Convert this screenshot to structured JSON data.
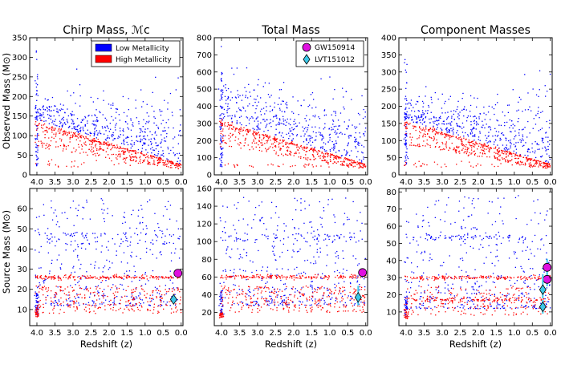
{
  "figure": {
    "ylabel_top": "Observed Mass (M⊙)",
    "ylabel_bottom": "Source Mass (M⊙)",
    "xlabel": "Redshift (z)"
  },
  "colors": {
    "low_metallicity": "#0000ff",
    "high_metallicity": "#ff0000",
    "gw150914": "#e010e0",
    "lvt151012": "#3cc8e8",
    "error_bar": "#3cc8e8"
  },
  "legend_metallicity": [
    "Low Metallicity",
    "High Metallicity"
  ],
  "legend_events": [
    "GW150914",
    "LVT151012"
  ],
  "chart_data": [
    {
      "type": "scatter",
      "panel": "top-left",
      "title": "Chirp Mass, ℳc",
      "xlabel": "",
      "ylabel": "Observed Mass (M⊙)",
      "xlim": [
        4.2,
        -0.05
      ],
      "ylim": [
        0,
        350
      ],
      "xticks": [
        "4.0",
        "3.5",
        "3.0",
        "2.5",
        "2.0",
        "1.5",
        "1.0",
        "0.5",
        "0.0"
      ],
      "yticks": [
        "0",
        "50",
        "100",
        "150",
        "200",
        "250",
        "300",
        "350"
      ],
      "series": [
        {
          "name": "Low Metallicity",
          "model": "observed",
          "fundamental": 28,
          "scale": [
            0.15,
            9
          ],
          "floor": 20
        },
        {
          "name": "High Metallicity",
          "model": "observed",
          "base": 26,
          "lower": 14,
          "floor": 20
        }
      ],
      "legend": "top-right"
    },
    {
      "type": "scatter",
      "panel": "top-middle",
      "title": "Total Mass",
      "xlabel": "",
      "ylabel": "",
      "xlim": [
        4.2,
        -0.05
      ],
      "ylim": [
        0,
        800
      ],
      "xticks": [
        "4.0",
        "3.5",
        "3.0",
        "2.5",
        "2.0",
        "1.5",
        "1.0",
        "0.5",
        "0.0"
      ],
      "yticks": [
        "0",
        "100",
        "200",
        "300",
        "400",
        "500",
        "600",
        "700",
        "800"
      ],
      "series": [
        {
          "name": "Low Metallicity",
          "model": "observed",
          "fundamental": 65,
          "scale": [
            0.35,
            18
          ],
          "floor": 45
        },
        {
          "name": "High Metallicity",
          "model": "observed",
          "base": 60,
          "lower": 33,
          "floor": 45
        }
      ],
      "legend": "top-right"
    },
    {
      "type": "scatter",
      "panel": "top-right",
      "title": "Component Masses",
      "xlabel": "",
      "ylabel": "",
      "xlim": [
        4.2,
        -0.05
      ],
      "ylim": [
        0,
        400
      ],
      "xticks": [
        "4.0",
        "3.5",
        "3.0",
        "2.5",
        "2.0",
        "1.5",
        "1.0",
        "0.5",
        "0.0"
      ],
      "yticks": [
        "0",
        "50",
        "100",
        "150",
        "200",
        "250",
        "300",
        "350",
        "400"
      ],
      "series": [
        {
          "name": "Low Metallicity",
          "model": "observed",
          "fundamental": 32,
          "scale": [
            0.15,
            11
          ],
          "floor": 20
        },
        {
          "name": "High Metallicity",
          "model": "observed",
          "base": 30,
          "lower": 17,
          "floor": 20
        }
      ]
    },
    {
      "type": "scatter",
      "panel": "bottom-left",
      "title": "",
      "xlabel": "Redshift (z)",
      "ylabel": "Source Mass (M⊙)",
      "xlim": [
        4.2,
        -0.05
      ],
      "ylim": [
        2,
        70
      ],
      "xticks": [
        "4.0",
        "3.5",
        "3.0",
        "2.5",
        "2.0",
        "1.5",
        "1.0",
        "0.5",
        "0.0"
      ],
      "yticks": [
        "10",
        "20",
        "30",
        "40",
        "50",
        "60"
      ],
      "series": [
        {
          "name": "Low Metallicity",
          "model": "source",
          "band": [
            12,
            65
          ],
          "cluster": [
            42,
            48
          ]
        },
        {
          "name": "High Metallicity",
          "model": "source",
          "line": 26,
          "band": [
            8,
            22
          ]
        }
      ],
      "events": [
        {
          "name": "GW150914",
          "z": 0.09,
          "value": 28,
          "err": [
            26.5,
            29.5
          ],
          "marker": "circle"
        },
        {
          "name": "LVT151012",
          "z": 0.21,
          "value": 15,
          "err": [
            13.5,
            17.5
          ],
          "marker": "diamond"
        }
      ]
    },
    {
      "type": "scatter",
      "panel": "bottom-middle",
      "title": "",
      "xlabel": "Redshift (z)",
      "ylabel": "",
      "xlim": [
        4.2,
        -0.05
      ],
      "ylim": [
        5,
        160
      ],
      "xticks": [
        "4.0",
        "3.5",
        "3.0",
        "2.5",
        "2.0",
        "1.5",
        "1.0",
        "0.5",
        "0.0"
      ],
      "yticks": [
        "20",
        "40",
        "60",
        "80",
        "100",
        "120",
        "140",
        "160"
      ],
      "series": [
        {
          "name": "Low Metallicity",
          "model": "source",
          "band": [
            28,
            150
          ],
          "cluster": [
            100,
            110
          ]
        },
        {
          "name": "High Metallicity",
          "model": "source",
          "line": 60,
          "band": [
            20,
            50
          ]
        }
      ],
      "events": [
        {
          "name": "GW150914",
          "z": 0.09,
          "value": 65,
          "err": [
            61,
            69
          ],
          "marker": "circle"
        },
        {
          "name": "LVT151012",
          "z": 0.21,
          "value": 37,
          "err": [
            28,
            50
          ],
          "marker": "diamond"
        }
      ]
    },
    {
      "type": "scatter",
      "panel": "bottom-right",
      "title": "",
      "xlabel": "Redshift (z)",
      "ylabel": "",
      "xlim": [
        4.2,
        -0.05
      ],
      "ylim": [
        2,
        82
      ],
      "xticks": [
        "4.0",
        "3.5",
        "3.0",
        "2.5",
        "2.0",
        "1.5",
        "1.0",
        "0.5",
        "0.0"
      ],
      "yticks": [
        "10",
        "20",
        "30",
        "40",
        "50",
        "60",
        "70",
        "80"
      ],
      "series": [
        {
          "name": "Low Metallicity",
          "model": "source",
          "band": [
            12,
            78
          ],
          "cluster": [
            52,
            55
          ]
        },
        {
          "name": "High Metallicity",
          "model": "source",
          "line": 30,
          "line2": 17,
          "band": [
            8,
            25
          ]
        }
      ],
      "events": [
        {
          "name": "GW150914",
          "z": 0.09,
          "value": 36,
          "err": [
            32,
            41
          ],
          "marker": "circle"
        },
        {
          "name": "GW150914",
          "z": 0.09,
          "value": 29,
          "err": [
            25,
            33
          ],
          "marker": "circle"
        },
        {
          "name": "LVT151012",
          "z": 0.21,
          "value": 23,
          "err": [
            18,
            32
          ],
          "marker": "diamond"
        },
        {
          "name": "LVT151012",
          "z": 0.21,
          "value": 13,
          "err": [
            9,
            17
          ],
          "marker": "diamond"
        }
      ]
    }
  ]
}
